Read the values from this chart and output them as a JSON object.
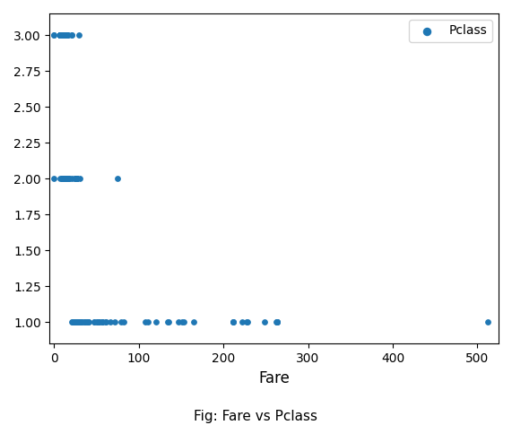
{
  "title": "Fig: Fare vs Pclass",
  "xlabel": "Fare",
  "ylabel": "",
  "legend_label": "Pclass",
  "dot_color": "#1f77b4",
  "dot_size": 15,
  "xlim": [
    -5,
    525
  ],
  "ylim": [
    0.85,
    3.15
  ],
  "yticks": [
    1.0,
    1.25,
    1.5,
    1.75,
    2.0,
    2.25,
    2.5,
    2.75,
    3.0
  ],
  "xticks": [
    0,
    100,
    200,
    300,
    400,
    500
  ],
  "fare_pclass": [
    [
      7.25,
      3
    ],
    [
      71.83,
      1
    ],
    [
      7.925,
      3
    ],
    [
      53.1,
      1
    ],
    [
      8.05,
      3
    ],
    [
      8.4583,
      3
    ],
    [
      51.8625,
      1
    ],
    [
      21.075,
      3
    ],
    [
      11.1333,
      3
    ],
    [
      30.0708,
      2
    ],
    [
      16.7,
      3
    ],
    [
      26.55,
      1
    ],
    [
      8.05,
      3
    ],
    [
      31.275,
      1
    ],
    [
      7.8542,
      3
    ],
    [
      16.0,
      2
    ],
    [
      29.125,
      3
    ],
    [
      13.0,
      2
    ],
    [
      18.0,
      2
    ],
    [
      7.225,
      3
    ],
    [
      26.0,
      2
    ],
    [
      13.0,
      2
    ],
    [
      8.0292,
      3
    ],
    [
      35.5,
      1
    ],
    [
      21.075,
      3
    ],
    [
      31.3875,
      1
    ],
    [
      7.225,
      3
    ],
    [
      263.0,
      1
    ],
    [
      7.8792,
      3
    ],
    [
      7.8958,
      3
    ],
    [
      27.7208,
      1
    ],
    [
      146.5208,
      1
    ],
    [
      7.75,
      3
    ],
    [
      10.5,
      2
    ],
    [
      82.1708,
      1
    ],
    [
      52.0,
      1
    ],
    [
      7.2292,
      3
    ],
    [
      8.05,
      3
    ],
    [
      18.0,
      2
    ],
    [
      11.2417,
      3
    ],
    [
      9.475,
      3
    ],
    [
      21.0,
      2
    ],
    [
      7.8958,
      3
    ],
    [
      41.5792,
      1
    ],
    [
      7.8792,
      3
    ],
    [
      15.5,
      3
    ],
    [
      7.7333,
      3
    ],
    [
      10.5,
      2
    ],
    [
      26.0,
      2
    ],
    [
      7.8958,
      3
    ],
    [
      13.0,
      2
    ],
    [
      30.0,
      1
    ],
    [
      53.1,
      1
    ],
    [
      26.55,
      1
    ],
    [
      0.0,
      3
    ],
    [
      9.0,
      3
    ],
    [
      31.275,
      1
    ],
    [
      13.0,
      2
    ],
    [
      0.0,
      2
    ],
    [
      7.775,
      3
    ],
    [
      7.2292,
      3
    ],
    [
      39.6875,
      1
    ],
    [
      7.8958,
      3
    ],
    [
      56.4958,
      1
    ],
    [
      7.65,
      3
    ],
    [
      7.8958,
      3
    ],
    [
      7.775,
      3
    ],
    [
      13.0,
      2
    ],
    [
      7.75,
      3
    ],
    [
      8.05,
      3
    ],
    [
      11.5,
      3
    ],
    [
      15.5,
      2
    ],
    [
      7.7292,
      3
    ],
    [
      22.525,
      1
    ],
    [
      7.55,
      2
    ],
    [
      10.5,
      2
    ],
    [
      24.15,
      1
    ],
    [
      7.8958,
      3
    ],
    [
      7.7333,
      3
    ],
    [
      26.0,
      2
    ],
    [
      20.575,
      1
    ],
    [
      9.5,
      3
    ],
    [
      26.0,
      1
    ],
    [
      7.925,
      3
    ],
    [
      26.0,
      2
    ],
    [
      7.75,
      3
    ],
    [
      7.7333,
      3
    ],
    [
      47.1,
      1
    ],
    [
      7.8792,
      3
    ],
    [
      7.2292,
      3
    ],
    [
      10.5,
      2
    ],
    [
      227.525,
      1
    ],
    [
      8.05,
      3
    ],
    [
      7.225,
      3
    ],
    [
      12.35,
      2
    ],
    [
      8.05,
      3
    ],
    [
      7.0458,
      3
    ],
    [
      9.5,
      3
    ],
    [
      14.5,
      3
    ],
    [
      7.5208,
      3
    ],
    [
      61.1792,
      1
    ],
    [
      12.35,
      2
    ],
    [
      9.8458,
      3
    ],
    [
      12.35,
      2
    ],
    [
      13.0,
      2
    ],
    [
      7.2292,
      3
    ],
    [
      7.8958,
      3
    ],
    [
      7.7417,
      3
    ],
    [
      12.0,
      2
    ],
    [
      7.5792,
      3
    ],
    [
      66.6,
      1
    ],
    [
      7.3125,
      3
    ],
    [
      7.8958,
      3
    ],
    [
      7.3125,
      3
    ],
    [
      7.8958,
      3
    ],
    [
      51.4792,
      1
    ],
    [
      14.4542,
      3
    ],
    [
      8.0583,
      3
    ],
    [
      7.8958,
      3
    ],
    [
      7.8958,
      3
    ],
    [
      107.85,
      1
    ],
    [
      7.75,
      3
    ],
    [
      9.5,
      3
    ],
    [
      13.0,
      2
    ],
    [
      7.7333,
      3
    ],
    [
      7.6292,
      3
    ],
    [
      7.55,
      3
    ],
    [
      9.5,
      2
    ],
    [
      7.8958,
      3
    ],
    [
      7.8958,
      3
    ],
    [
      10.5,
      2
    ],
    [
      7.55,
      3
    ],
    [
      7.65,
      3
    ],
    [
      7.775,
      3
    ],
    [
      7.225,
      3
    ],
    [
      11.5,
      3
    ],
    [
      7.225,
      3
    ],
    [
      7.7958,
      3
    ],
    [
      27.9,
      1
    ],
    [
      52.5542,
      1
    ],
    [
      12.525,
      2
    ],
    [
      7.925,
      3
    ],
    [
      9.5,
      3
    ],
    [
      7.8958,
      3
    ],
    [
      7.7958,
      3
    ],
    [
      7.8958,
      3
    ],
    [
      7.225,
      3
    ],
    [
      10.5,
      2
    ],
    [
      11.5,
      3
    ],
    [
      7.5208,
      3
    ],
    [
      30.5,
      1
    ],
    [
      24.0,
      2
    ],
    [
      23.45,
      1
    ],
    [
      7.8958,
      3
    ],
    [
      7.8958,
      3
    ],
    [
      7.8958,
      3
    ],
    [
      12.35,
      2
    ],
    [
      7.225,
      3
    ],
    [
      7.225,
      3
    ],
    [
      151.55,
      1
    ],
    [
      30.5,
      1
    ],
    [
      7.7333,
      3
    ],
    [
      15.85,
      3
    ],
    [
      7.8958,
      3
    ],
    [
      7.8958,
      3
    ],
    [
      8.05,
      3
    ],
    [
      26.0,
      2
    ],
    [
      11.5,
      2
    ],
    [
      22.525,
      1
    ],
    [
      7.3125,
      3
    ],
    [
      10.5,
      2
    ],
    [
      7.7958,
      3
    ],
    [
      7.8958,
      3
    ],
    [
      7.925,
      3
    ],
    [
      7.8292,
      3
    ],
    [
      7.55,
      3
    ],
    [
      7.8958,
      3
    ],
    [
      56.9292,
      1
    ],
    [
      39.0,
      1
    ],
    [
      27.7208,
      1
    ],
    [
      13.0,
      2
    ],
    [
      7.7208,
      3
    ],
    [
      7.55,
      3
    ],
    [
      120.0,
      1
    ],
    [
      8.0583,
      3
    ],
    [
      7.8958,
      3
    ],
    [
      7.925,
      3
    ],
    [
      7.775,
      3
    ],
    [
      9.5,
      3
    ],
    [
      7.8958,
      3
    ],
    [
      78.85,
      1
    ],
    [
      7.8958,
      3
    ],
    [
      7.8292,
      3
    ],
    [
      9.5,
      3
    ],
    [
      7.8958,
      3
    ],
    [
      7.8958,
      3
    ],
    [
      7.0458,
      3
    ],
    [
      8.4333,
      3
    ],
    [
      7.65,
      3
    ],
    [
      7.225,
      3
    ],
    [
      8.05,
      3
    ],
    [
      7.7958,
      3
    ],
    [
      7.0458,
      3
    ],
    [
      7.7333,
      3
    ],
    [
      9.5,
      3
    ],
    [
      7.6292,
      3
    ],
    [
      7.8958,
      3
    ],
    [
      7.8958,
      3
    ],
    [
      12.35,
      2
    ],
    [
      7.8958,
      3
    ],
    [
      7.8958,
      3
    ],
    [
      7.7333,
      3
    ],
    [
      7.55,
      3
    ],
    [
      7.8958,
      3
    ],
    [
      7.7958,
      3
    ],
    [
      7.55,
      3
    ],
    [
      7.7333,
      3
    ],
    [
      7.7958,
      3
    ],
    [
      7.225,
      3
    ],
    [
      7.7333,
      3
    ],
    [
      7.7958,
      3
    ],
    [
      9.5,
      3
    ],
    [
      7.8958,
      3
    ],
    [
      7.7208,
      3
    ],
    [
      7.8958,
      3
    ],
    [
      110.8833,
      1
    ],
    [
      7.65,
      3
    ],
    [
      7.7958,
      3
    ],
    [
      9.5,
      3
    ],
    [
      7.8958,
      3
    ],
    [
      0.0,
      3
    ],
    [
      7.75,
      3
    ],
    [
      7.7958,
      3
    ],
    [
      7.8958,
      3
    ],
    [
      7.7333,
      3
    ],
    [
      7.8958,
      3
    ],
    [
      7.8958,
      3
    ],
    [
      7.8958,
      3
    ],
    [
      7.8958,
      3
    ],
    [
      7.8958,
      3
    ],
    [
      7.8958,
      3
    ],
    [
      7.8958,
      3
    ],
    [
      13.0,
      2
    ],
    [
      26.0,
      2
    ],
    [
      13.0,
      2
    ],
    [
      10.5,
      2
    ],
    [
      10.5,
      2
    ],
    [
      10.5,
      2
    ],
    [
      13.0,
      2
    ],
    [
      13.0,
      2
    ],
    [
      13.0,
      2
    ],
    [
      10.5,
      2
    ],
    [
      26.0,
      2
    ],
    [
      13.0,
      2
    ],
    [
      26.0,
      2
    ],
    [
      26.0,
      2
    ],
    [
      15.5,
      2
    ],
    [
      13.0,
      2
    ],
    [
      10.5,
      2
    ],
    [
      10.5,
      2
    ],
    [
      26.0,
      2
    ],
    [
      26.0,
      2
    ],
    [
      10.5,
      2
    ],
    [
      13.0,
      2
    ],
    [
      10.5,
      2
    ],
    [
      13.0,
      2
    ],
    [
      26.0,
      2
    ],
    [
      13.0,
      2
    ],
    [
      10.5,
      2
    ],
    [
      26.0,
      2
    ],
    [
      13.0,
      2
    ],
    [
      10.5,
      2
    ],
    [
      10.5,
      2
    ],
    [
      10.5,
      2
    ],
    [
      13.0,
      2
    ],
    [
      10.5,
      2
    ],
    [
      10.5,
      2
    ],
    [
      10.5,
      2
    ],
    [
      13.0,
      2
    ],
    [
      10.5,
      2
    ],
    [
      26.0,
      2
    ],
    [
      10.5,
      2
    ],
    [
      10.5,
      2
    ],
    [
      10.5,
      2
    ],
    [
      10.5,
      2
    ],
    [
      10.5,
      2
    ],
    [
      13.0,
      2
    ],
    [
      10.5,
      2
    ],
    [
      10.5,
      2
    ],
    [
      10.5,
      2
    ],
    [
      10.5,
      2
    ],
    [
      10.5,
      2
    ],
    [
      75.25,
      2
    ],
    [
      10.5,
      2
    ],
    [
      10.5,
      2
    ],
    [
      10.5,
      2
    ],
    [
      10.5,
      2
    ],
    [
      10.5,
      2
    ],
    [
      10.5,
      2
    ],
    [
      10.5,
      2
    ],
    [
      10.5,
      2
    ],
    [
      10.5,
      2
    ],
    [
      10.5,
      2
    ],
    [
      26.0,
      2
    ],
    [
      10.5,
      2
    ],
    [
      26.0,
      2
    ],
    [
      13.0,
      2
    ],
    [
      10.5,
      2
    ],
    [
      10.5,
      2
    ],
    [
      10.5,
      2
    ],
    [
      10.5,
      2
    ],
    [
      10.5,
      2
    ],
    [
      10.5,
      2
    ],
    [
      10.5,
      2
    ],
    [
      30.0,
      1
    ],
    [
      25.925,
      1
    ],
    [
      27.7208,
      1
    ],
    [
      211.3375,
      1
    ],
    [
      57.0,
      1
    ],
    [
      51.8625,
      1
    ],
    [
      26.55,
      1
    ],
    [
      263.0,
      1
    ],
    [
      263.0,
      1
    ],
    [
      26.55,
      1
    ],
    [
      53.1,
      1
    ],
    [
      30.5,
      1
    ],
    [
      30.5,
      1
    ],
    [
      26.55,
      1
    ],
    [
      39.6875,
      1
    ],
    [
      36.75,
      1
    ],
    [
      61.175,
      1
    ],
    [
      47.1,
      1
    ],
    [
      52.5542,
      1
    ],
    [
      27.7208,
      1
    ],
    [
      211.3375,
      1
    ],
    [
      262.375,
      1
    ],
    [
      135.6333,
      1
    ],
    [
      512.3292,
      1
    ],
    [
      39.6875,
      1
    ],
    [
      26.55,
      1
    ],
    [
      27.7208,
      1
    ],
    [
      31.0,
      1
    ],
    [
      52.0,
      1
    ],
    [
      26.55,
      1
    ],
    [
      153.4625,
      1
    ],
    [
      52.0,
      1
    ],
    [
      29.7,
      1
    ],
    [
      26.55,
      1
    ],
    [
      30.5,
      1
    ],
    [
      26.55,
      1
    ],
    [
      31.275,
      1
    ],
    [
      26.55,
      1
    ],
    [
      31.275,
      1
    ],
    [
      31.0,
      1
    ],
    [
      52.0,
      1
    ],
    [
      31.275,
      1
    ],
    [
      26.55,
      1
    ],
    [
      26.55,
      1
    ],
    [
      30.0,
      1
    ],
    [
      26.55,
      1
    ],
    [
      27.7208,
      1
    ],
    [
      221.7792,
      1
    ],
    [
      134.5,
      1
    ],
    [
      35.5,
      1
    ],
    [
      30.0,
      1
    ],
    [
      26.55,
      1
    ],
    [
      31.0,
      1
    ],
    [
      263.0,
      1
    ],
    [
      26.55,
      1
    ],
    [
      30.0,
      1
    ],
    [
      26.55,
      1
    ],
    [
      26.55,
      1
    ],
    [
      31.275,
      1
    ],
    [
      26.55,
      1
    ],
    [
      30.5,
      1
    ],
    [
      26.55,
      1
    ],
    [
      27.7208,
      1
    ],
    [
      26.55,
      1
    ],
    [
      27.7208,
      1
    ],
    [
      31.275,
      1
    ],
    [
      26.55,
      1
    ],
    [
      30.0,
      1
    ],
    [
      27.7208,
      1
    ],
    [
      26.55,
      1
    ],
    [
      26.55,
      1
    ],
    [
      31.0,
      1
    ],
    [
      26.55,
      1
    ],
    [
      26.55,
      1
    ],
    [
      30.5,
      1
    ],
    [
      26.55,
      1
    ],
    [
      26.55,
      1
    ],
    [
      26.55,
      1
    ],
    [
      31.275,
      1
    ],
    [
      26.55,
      1
    ],
    [
      31.0,
      1
    ],
    [
      26.55,
      1
    ],
    [
      26.55,
      1
    ],
    [
      30.0,
      1
    ],
    [
      26.55,
      1
    ],
    [
      26.55,
      1
    ],
    [
      26.55,
      1
    ],
    [
      26.55,
      1
    ],
    [
      30.5,
      1
    ],
    [
      27.7208,
      1
    ],
    [
      26.55,
      1
    ],
    [
      26.55,
      1
    ],
    [
      26.55,
      1
    ],
    [
      26.55,
      1
    ],
    [
      30.0,
      1
    ],
    [
      26.55,
      1
    ],
    [
      26.55,
      1
    ],
    [
      26.55,
      1
    ],
    [
      211.3375,
      1
    ],
    [
      249.0,
      1
    ],
    [
      164.8667,
      1
    ],
    [
      26.55,
      1
    ],
    [
      26.55,
      1
    ],
    [
      30.0,
      1
    ],
    [
      27.7208,
      1
    ],
    [
      26.55,
      1
    ],
    [
      26.55,
      1
    ],
    [
      30.5,
      1
    ],
    [
      26.55,
      1
    ],
    [
      26.55,
      1
    ],
    [
      26.55,
      1
    ],
    [
      26.55,
      1
    ],
    [
      30.0,
      1
    ],
    [
      26.55,
      1
    ],
    [
      26.55,
      1
    ],
    [
      26.55,
      1
    ],
    [
      228.0,
      1
    ],
    [
      26.55,
      1
    ],
    [
      26.55,
      1
    ],
    [
      26.55,
      1
    ],
    [
      26.55,
      1
    ],
    [
      30.5,
      1
    ],
    [
      31.275,
      1
    ],
    [
      26.55,
      1
    ],
    [
      26.55,
      1
    ],
    [
      30.0,
      1
    ],
    [
      26.55,
      1
    ],
    [
      26.55,
      1
    ],
    [
      26.55,
      1
    ],
    [
      26.55,
      1
    ],
    [
      26.55,
      1
    ],
    [
      30.5,
      1
    ],
    [
      30.5,
      1
    ],
    [
      26.55,
      1
    ],
    [
      30.5,
      1
    ],
    [
      26.55,
      1
    ],
    [
      26.55,
      1
    ],
    [
      30.5,
      1
    ],
    [
      26.55,
      1
    ],
    [
      26.55,
      1
    ],
    [
      26.55,
      1
    ],
    [
      26.55,
      1
    ],
    [
      26.55,
      1
    ],
    [
      26.55,
      1
    ],
    [
      26.55,
      1
    ],
    [
      26.55,
      1
    ],
    [
      26.55,
      1
    ],
    [
      26.55,
      1
    ],
    [
      26.55,
      1
    ],
    [
      26.55,
      1
    ],
    [
      26.55,
      1
    ],
    [
      26.55,
      1
    ],
    [
      26.55,
      1
    ],
    [
      26.55,
      1
    ],
    [
      26.55,
      1
    ],
    [
      26.55,
      1
    ],
    [
      26.55,
      1
    ],
    [
      26.55,
      1
    ],
    [
      26.55,
      1
    ],
    [
      26.55,
      1
    ],
    [
      26.55,
      1
    ],
    [
      26.55,
      1
    ],
    [
      26.55,
      1
    ],
    [
      26.55,
      1
    ]
  ]
}
